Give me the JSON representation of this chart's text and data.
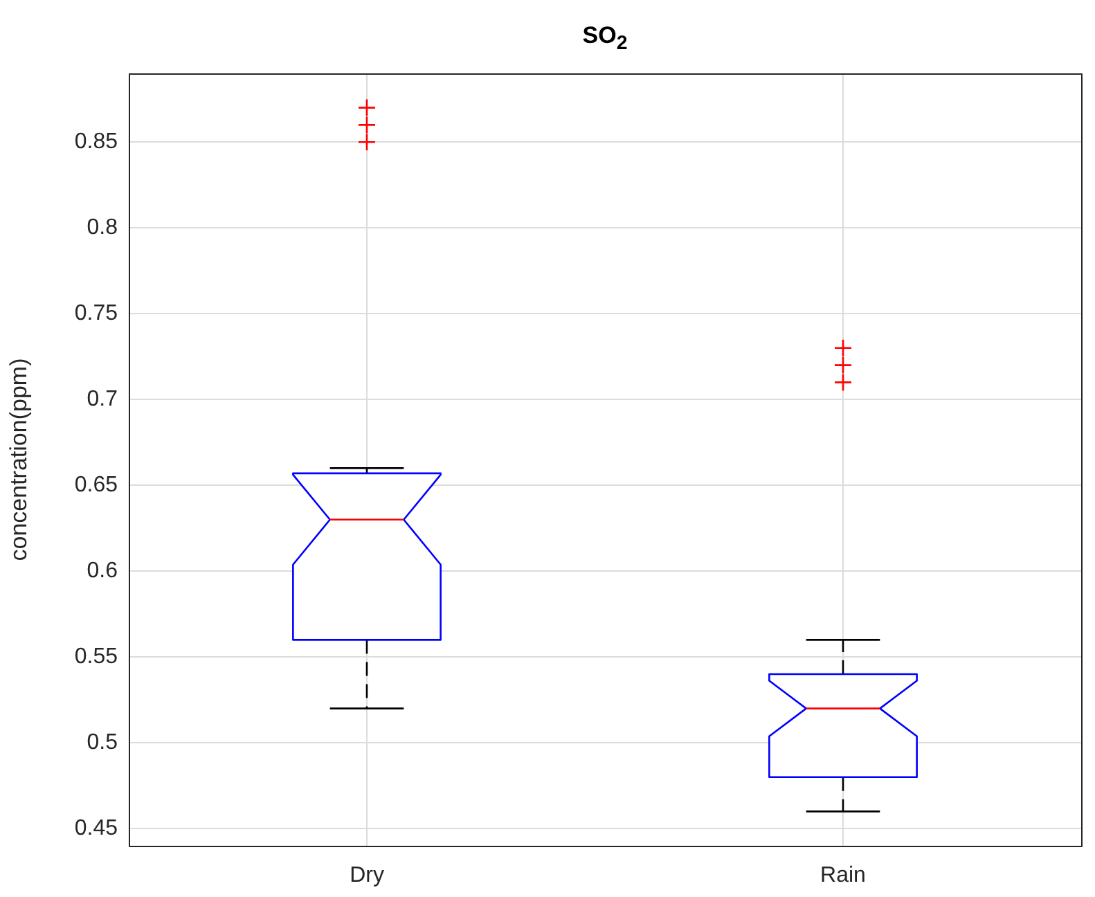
{
  "chart_data": {
    "type": "box",
    "title": "SO$_{2}$",
    "ylabel": "concentration(ppm)",
    "categories": [
      "Dry",
      "Rain"
    ],
    "series": [
      {
        "color": "#0000ff",
        "boxes": [
          {
            "low": 0.52,
            "q1": 0.56,
            "median": 0.63,
            "q3": 0.657,
            "high": 0.66,
            "outliers": [
              0.85,
              0.86,
              0.87
            ]
          },
          {
            "low": 0.46,
            "q1": 0.48,
            "median": 0.52,
            "q3": 0.54,
            "high": 0.56,
            "outliers": [
              0.71,
              0.72,
              0.73
            ]
          }
        ]
      }
    ],
    "ylim": [
      0.44,
      0.89
    ],
    "yticks": [
      0.45,
      0.5,
      0.55,
      0.6,
      0.65,
      0.7,
      0.75,
      0.8,
      0.85
    ],
    "grid": true,
    "legend": false
  }
}
